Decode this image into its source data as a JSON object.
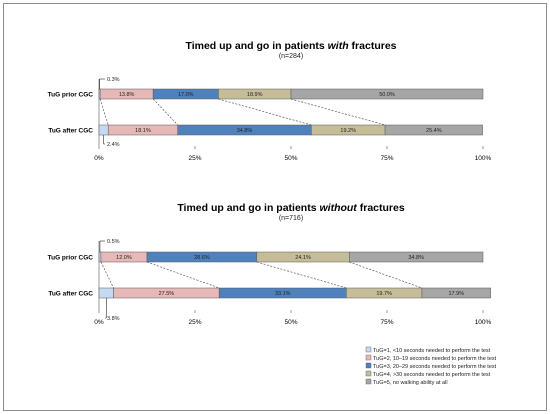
{
  "chart_data": [
    {
      "type": "bar",
      "orientation": "horizontal",
      "stacked": true,
      "title_parts": [
        "Timed up and go in patients ",
        "with",
        " fractures"
      ],
      "subtitle": "(n=284)",
      "categories": [
        "TuG prior CGC",
        "TuG after CGC"
      ],
      "series": [
        {
          "name": "TuG=1, <10 seconds needed to perform the test",
          "values": [
            0.3,
            2.4
          ],
          "labels": [
            "0.3%",
            "2.4%"
          ]
        },
        {
          "name": "TuG=2, 10–19 seconds needed to perform the test",
          "values": [
            13.8,
            18.1
          ],
          "labels": [
            "13.8%",
            "18.1%"
          ]
        },
        {
          "name": "TuG=3, 20–29 seconds needed to perform the test",
          "values": [
            17.0,
            34.8
          ],
          "labels": [
            "17.0%",
            "34.8%"
          ]
        },
        {
          "name": "TuG=4, >30 seconds needed to perform the test",
          "values": [
            18.9,
            19.2
          ],
          "labels": [
            "18.9%",
            "19.2%"
          ]
        },
        {
          "name": "TuG=5, no walking ability at all",
          "values": [
            50.0,
            25.4
          ],
          "labels": [
            "50.0%",
            "25.4%"
          ]
        }
      ],
      "xlim": [
        0,
        100
      ],
      "xticks": [
        "0%",
        "25%",
        "50%",
        "75%",
        "100%"
      ],
      "connectors": "dashed lines between cumulative boundaries"
    },
    {
      "type": "bar",
      "orientation": "horizontal",
      "stacked": true,
      "title_parts": [
        "Timed up and go in patients ",
        "without",
        " fractures"
      ],
      "subtitle": "(n=716)",
      "categories": [
        "TuG prior CGC",
        "TuG after CGC"
      ],
      "series": [
        {
          "name": "TuG=1, <10 seconds needed to perform the test",
          "values": [
            0.5,
            3.8
          ],
          "labels": [
            "0.5%",
            "3.8%"
          ]
        },
        {
          "name": "TuG=2, 10–19 seconds needed to perform the test",
          "values": [
            12.0,
            27.5
          ],
          "labels": [
            "12.0%",
            "27.5%"
          ]
        },
        {
          "name": "TuG=3, 20–29 seconds needed to perform the test",
          "values": [
            28.6,
            33.1
          ],
          "labels": [
            "28.6%",
            "33.1%"
          ]
        },
        {
          "name": "TuG=4, >30 seconds needed to perform the test",
          "values": [
            24.1,
            19.7
          ],
          "labels": [
            "24.1%",
            "19.7%"
          ]
        },
        {
          "name": "TuG=5, no walking ability at all",
          "values": [
            34.8,
            17.9
          ],
          "labels": [
            "34.8%",
            "17.9%"
          ]
        }
      ],
      "xlim": [
        0,
        100
      ],
      "xticks": [
        "0%",
        "25%",
        "50%",
        "75%",
        "100%"
      ],
      "connectors": "dashed lines between cumulative boundaries"
    }
  ],
  "colors": [
    "#c5d9f1",
    "#e6b8b7",
    "#4f81bd",
    "#c4bd97",
    "#a6a6a6"
  ],
  "legend": {
    "position": "bottom-right",
    "items": [
      "TuG=1, <10 seconds needed to perform the test",
      "TuG=2, 10–19 seconds needed to perform the test",
      "TuG=3, 20–29 seconds needed to perform the test",
      "TuG=4, >30 seconds needed to perform the test",
      "TuG=5, no walking ability at all"
    ]
  }
}
